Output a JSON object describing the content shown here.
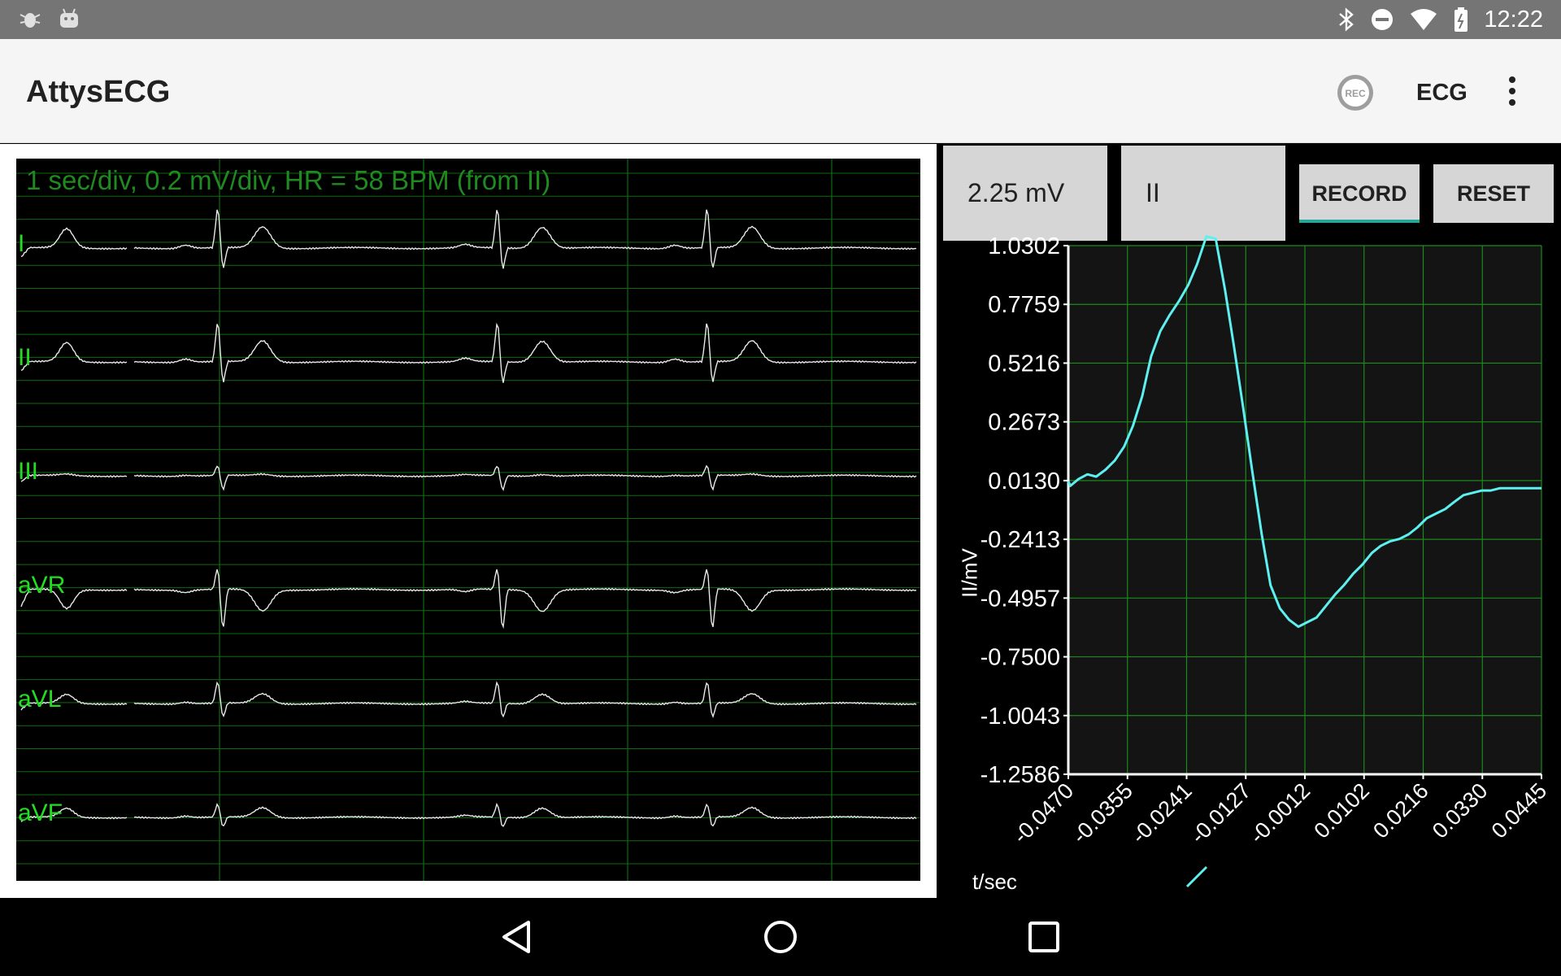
{
  "status_bar": {
    "time": "12:22",
    "icons": [
      "bug-icon",
      "android-icon",
      "bluetooth-icon",
      "do-not-disturb-icon",
      "wifi-icon",
      "battery-icon"
    ]
  },
  "app_bar": {
    "title": "AttysECG",
    "rec_icon_text": "REC",
    "ecg_action": "ECG"
  },
  "ecg_panel": {
    "header": "1 sec/div, 0.2 mV/div, HR = 58 BPM (from II)",
    "leads": [
      "I",
      "II",
      "III",
      "aVR",
      "aVL",
      "aVF"
    ],
    "colors": {
      "grid": "#0f6a0f",
      "trace": "#e8e8e8",
      "label": "#22dd22",
      "header": "#1f8a1f"
    }
  },
  "controls": {
    "voltage_range": "2.25 mV",
    "lead_select": "II",
    "record_label": "RECORD",
    "reset_label": "RESET"
  },
  "chart_data": {
    "type": "line",
    "title": "",
    "xlabel": "t/sec",
    "ylabel": "II/mV",
    "y_ticks": [
      "1.0302",
      "0.7759",
      "0.5216",
      "0.2673",
      "0.0130",
      "-0.2413",
      "-0.4957",
      "-0.7500",
      "-1.0043",
      "-1.2586"
    ],
    "x_ticks": [
      "-0.0470",
      "-0.0355",
      "-0.0241",
      "-0.0127",
      "-0.0012",
      "0.0102",
      "0.0216",
      "0.0330",
      "0.0445"
    ],
    "xlim": [
      -0.047,
      0.0445
    ],
    "ylim": [
      -1.2586,
      1.0302
    ],
    "series": [
      {
        "name": "II",
        "color": "#5ef0f0",
        "x": [
          -0.047,
          -0.0466,
          -0.045,
          -0.0433,
          -0.0416,
          -0.0398,
          -0.038,
          -0.0362,
          -0.0345,
          -0.0327,
          -0.031,
          -0.0292,
          -0.0274,
          -0.0256,
          -0.0238,
          -0.0221,
          -0.0203,
          -0.0185,
          -0.0167,
          -0.015,
          -0.0132,
          -0.0114,
          -0.0096,
          -0.0079,
          -0.0061,
          -0.0043,
          -0.0025,
          -0.0008,
          0.001,
          0.0028,
          0.0046,
          0.0063,
          0.0081,
          0.0099,
          0.0117,
          0.0134,
          0.0152,
          0.017,
          0.0188,
          0.0205,
          0.0223,
          0.0241,
          0.0259,
          0.0276,
          0.0294,
          0.0312,
          0.033,
          0.0347,
          0.0365,
          0.0383,
          0.0401,
          0.0418,
          0.0436,
          0.0445
        ],
        "values": [
          0.01,
          -0.01,
          0.02,
          0.04,
          0.03,
          0.06,
          0.1,
          0.16,
          0.25,
          0.38,
          0.55,
          0.66,
          0.73,
          0.79,
          0.86,
          0.95,
          1.07,
          1.06,
          0.84,
          0.6,
          0.33,
          0.05,
          -0.22,
          -0.44,
          -0.54,
          -0.59,
          -0.62,
          -0.6,
          -0.58,
          -0.53,
          -0.48,
          -0.44,
          -0.39,
          -0.35,
          -0.3,
          -0.27,
          -0.25,
          -0.24,
          -0.22,
          -0.19,
          -0.15,
          -0.13,
          -0.11,
          -0.08,
          -0.05,
          -0.04,
          -0.03,
          -0.03,
          -0.02,
          -0.02,
          -0.02,
          -0.02,
          -0.02,
          -0.02
        ]
      }
    ]
  },
  "nav_bar": {
    "buttons": [
      "back",
      "home",
      "recents"
    ]
  }
}
